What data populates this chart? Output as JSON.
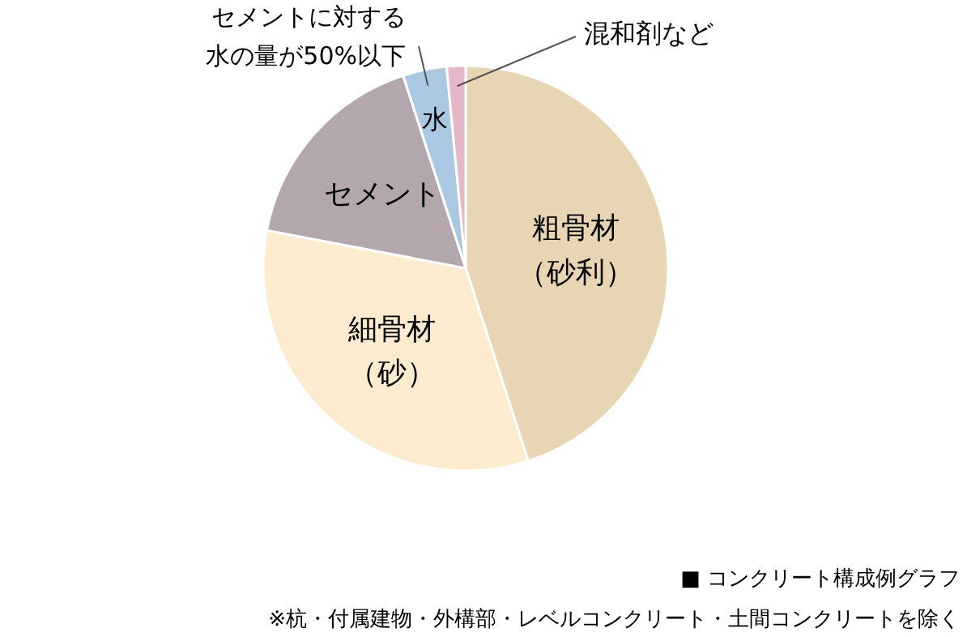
{
  "chart_data": {
    "type": "pie",
    "title": "■ コンクリート構成例グラフ",
    "categories": [
      "粗骨材（砂利）",
      "細骨材（砂）",
      "セメント",
      "水",
      "混和剤など"
    ],
    "values": [
      45,
      33,
      17,
      3.5,
      1.5
    ],
    "colors": [
      "#e8d5b3",
      "#fdebcf",
      "#b3a7ad",
      "#aac8e2",
      "#e4b6c9"
    ],
    "annotations": [
      "セメントに対する水の量が50%以下",
      "※杭・付属建物・外構部・レベルコンクリート・土間コンクリートを除く"
    ]
  }
}
